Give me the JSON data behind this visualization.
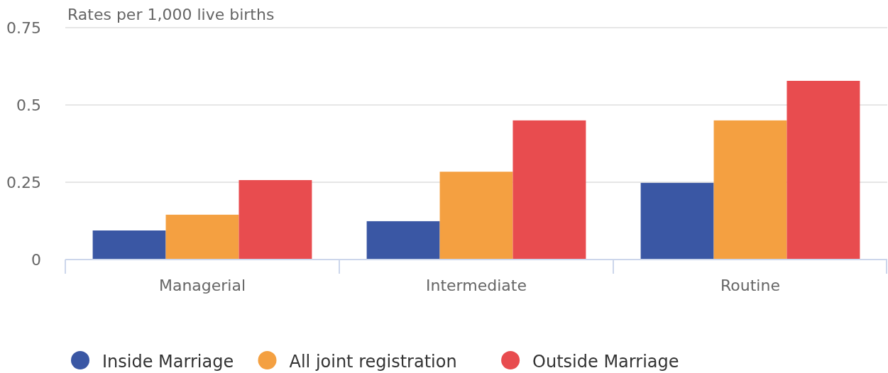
{
  "chart_data": {
    "type": "bar",
    "ylabel": "Rates per 1,000 live births",
    "categories": [
      "Managerial",
      "Intermediate",
      "Routine"
    ],
    "series": [
      {
        "name": "Inside Marriage",
        "color": "#3a57a4",
        "values": [
          0.094,
          0.124,
          0.248
        ]
      },
      {
        "name": "All joint registration",
        "color": "#f4a041",
        "values": [
          0.145,
          0.284,
          0.45
        ]
      },
      {
        "name": "Outside Marriage",
        "color": "#e84c4f",
        "values": [
          0.257,
          0.45,
          0.578
        ]
      }
    ],
    "ylim": [
      0,
      0.75
    ],
    "yticks": [
      0,
      0.25,
      0.5,
      0.75
    ],
    "grid": "y",
    "legend": "bottom"
  }
}
